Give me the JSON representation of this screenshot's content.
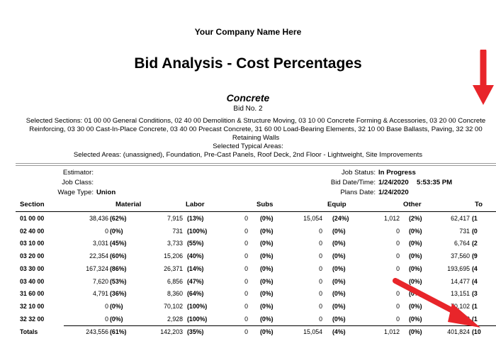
{
  "header": {
    "company": "Your Company Name Here",
    "title": "Bid Analysis - Cost Percentages",
    "project": "Concrete",
    "bid_no": "Bid No. 2",
    "selected_sections": "Selected Sections: 01 00 00 General Conditions, 02 40 00 Demolition & Structure Moving, 03 10 00 Concrete Forming & Accessories, 03 20 00 Concrete Reinforcing, 03 30 00 Cast-In-Place Concrete, 03 40 00 Precast Concrete, 31 60 00 Load-Bearing Elements, 32 10 00 Base Ballasts, Paving, 32 32 00 Retaining Walls",
    "selected_typical_areas": "Selected Typical Areas:",
    "selected_areas": "Selected Areas: (unassigned), Foundation, Pre-Cast Panels, Roof Deck, 2nd Floor - Lightweight, Site Improvements"
  },
  "info": {
    "estimator_label": "Estimator:",
    "estimator": "",
    "job_class_label": "Job Class:",
    "job_class": "",
    "wage_type_label": "Wage Type:",
    "wage_type": "Union",
    "job_status_label": "Job Status:",
    "job_status": "In Progress",
    "bid_date_label": "Bid Date/Time:",
    "bid_date": "1/24/2020",
    "bid_time": "5:53:35 PM",
    "plans_date_label": "Plans Date:",
    "plans_date": "1/24/2020"
  },
  "columns": {
    "section": "Section",
    "material": "Material",
    "labor": "Labor",
    "subs": "Subs",
    "equip": "Equip",
    "other": "Other",
    "total": "To"
  },
  "rows": [
    {
      "section": "01 00 00",
      "material": "38,436",
      "material_pct": "(62%)",
      "labor": "7,915",
      "labor_pct": "(13%)",
      "subs": "0",
      "subs_pct": "(0%)",
      "equip": "15,054",
      "equip_pct": "(24%)",
      "other": "1,012",
      "other_pct": "(2%)",
      "total": "62,417",
      "total_pct": "(1"
    },
    {
      "section": "02 40 00",
      "material": "0",
      "material_pct": "(0%)",
      "labor": "731",
      "labor_pct": "(100%)",
      "subs": "0",
      "subs_pct": "(0%)",
      "equip": "0",
      "equip_pct": "(0%)",
      "other": "0",
      "other_pct": "(0%)",
      "total": "731",
      "total_pct": "(0"
    },
    {
      "section": "03 10 00",
      "material": "3,031",
      "material_pct": "(45%)",
      "labor": "3,733",
      "labor_pct": "(55%)",
      "subs": "0",
      "subs_pct": "(0%)",
      "equip": "0",
      "equip_pct": "(0%)",
      "other": "0",
      "other_pct": "(0%)",
      "total": "6,764",
      "total_pct": "(2"
    },
    {
      "section": "03 20 00",
      "material": "22,354",
      "material_pct": "(60%)",
      "labor": "15,206",
      "labor_pct": "(40%)",
      "subs": "0",
      "subs_pct": "(0%)",
      "equip": "0",
      "equip_pct": "(0%)",
      "other": "0",
      "other_pct": "(0%)",
      "total": "37,560",
      "total_pct": "(9"
    },
    {
      "section": "03 30 00",
      "material": "167,324",
      "material_pct": "(86%)",
      "labor": "26,371",
      "labor_pct": "(14%)",
      "subs": "0",
      "subs_pct": "(0%)",
      "equip": "0",
      "equip_pct": "(0%)",
      "other": "0",
      "other_pct": "(0%)",
      "total": "193,695",
      "total_pct": "(4"
    },
    {
      "section": "03 40 00",
      "material": "7,620",
      "material_pct": "(53%)",
      "labor": "6,856",
      "labor_pct": "(47%)",
      "subs": "0",
      "subs_pct": "(0%)",
      "equip": "0",
      "equip_pct": "(0%)",
      "other": "0",
      "other_pct": "(0%)",
      "total": "14,477",
      "total_pct": "(4"
    },
    {
      "section": "31 60 00",
      "material": "4,791",
      "material_pct": "(36%)",
      "labor": "8,360",
      "labor_pct": "(64%)",
      "subs": "0",
      "subs_pct": "(0%)",
      "equip": "0",
      "equip_pct": "(0%)",
      "other": "0",
      "other_pct": "(0%)",
      "total": "13,151",
      "total_pct": "(3"
    },
    {
      "section": "32 10 00",
      "material": "0",
      "material_pct": "(0%)",
      "labor": "70,102",
      "labor_pct": "(100%)",
      "subs": "0",
      "subs_pct": "(0%)",
      "equip": "0",
      "equip_pct": "(0%)",
      "other": "0",
      "other_pct": "(0%)",
      "total": "70,102",
      "total_pct": "(1"
    },
    {
      "section": "32 32 00",
      "material": "0",
      "material_pct": "(0%)",
      "labor": "2,928",
      "labor_pct": "(100%)",
      "subs": "0",
      "subs_pct": "(0%)",
      "equip": "0",
      "equip_pct": "(0%)",
      "other": "0",
      "other_pct": "(0%)",
      "total": "2,928",
      "total_pct": "(1"
    }
  ],
  "totals": {
    "label": "Totals",
    "material": "243,556",
    "material_pct": "(61%)",
    "labor": "142,203",
    "labor_pct": "(35%)",
    "subs": "0",
    "subs_pct": "(0%)",
    "equip": "15,054",
    "equip_pct": "(4%)",
    "other": "1,012",
    "other_pct": "(0%)",
    "total": "401,824",
    "total_pct": "(10"
  },
  "colors": {
    "arrow": "#e8252a"
  }
}
